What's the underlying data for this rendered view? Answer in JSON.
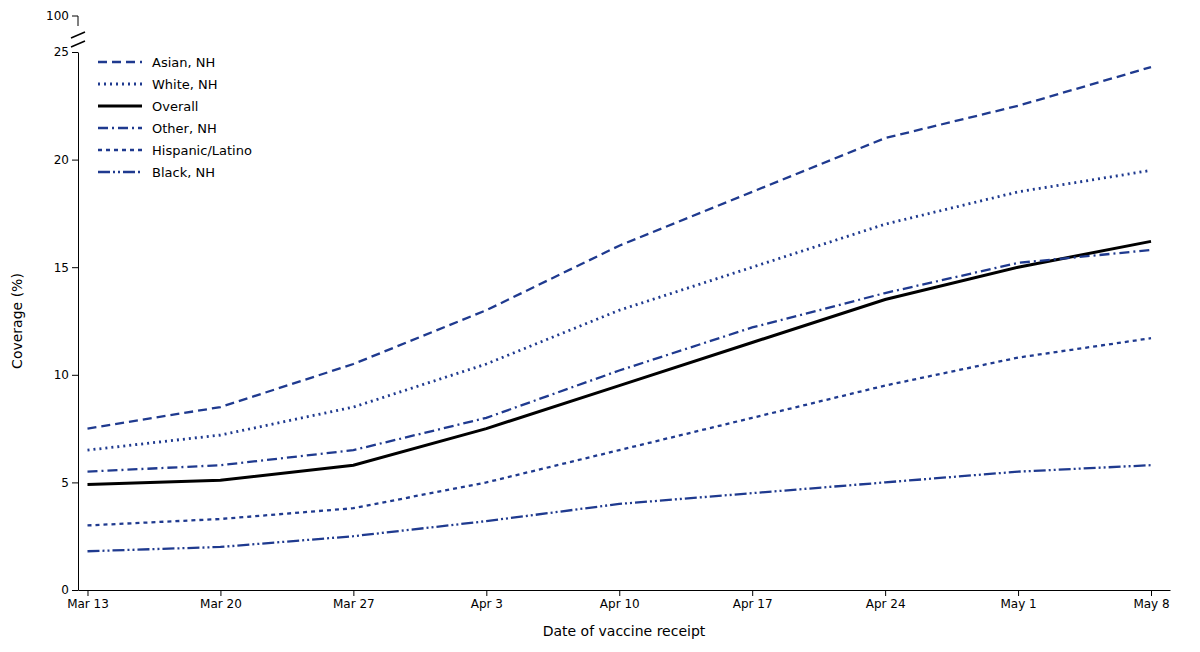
{
  "chart_data": {
    "type": "line",
    "xlabel": "Date of vaccine receipt",
    "ylabel": "Coverage (%)",
    "annotations": [
      "100"
    ],
    "x": [
      0,
      7,
      14,
      21,
      28,
      35,
      42,
      49,
      56
    ],
    "xlim": [
      -0.5,
      57
    ],
    "xticks": [
      {
        "value": 0,
        "label": "Mar 13"
      },
      {
        "value": 7,
        "label": "Mar 20"
      },
      {
        "value": 14,
        "label": "Mar 27"
      },
      {
        "value": 21,
        "label": "Apr 3"
      },
      {
        "value": 28,
        "label": "Apr 10"
      },
      {
        "value": 35,
        "label": "Apr 17"
      },
      {
        "value": 42,
        "label": "Apr 24"
      },
      {
        "value": 49,
        "label": "May 1"
      },
      {
        "value": 56,
        "label": "May 8"
      }
    ],
    "ylim": [
      0,
      25
    ],
    "yticks": [
      0,
      5,
      10,
      15,
      20,
      25
    ],
    "grid": false,
    "legend": "upper left",
    "series": [
      {
        "name": "Asian, NH",
        "color": "#1f3a8f",
        "line_style": "dashed",
        "values": [
          7.5,
          8.5,
          10.5,
          13.0,
          16.0,
          18.5,
          21.0,
          22.5,
          24.3
        ]
      },
      {
        "name": "White, NH",
        "color": "#1f3a8f",
        "line_style": "dotted",
        "values": [
          6.5,
          7.2,
          8.5,
          10.5,
          13.0,
          15.0,
          17.0,
          18.5,
          19.5
        ]
      },
      {
        "name": "Overall",
        "color": "#000000",
        "line_style": "solid",
        "values": [
          4.9,
          5.1,
          5.8,
          7.5,
          9.5,
          11.5,
          13.5,
          15.0,
          16.2
        ]
      },
      {
        "name": "Other, NH",
        "color": "#1f3a8f",
        "line_style": "dashdot",
        "values": [
          5.5,
          5.8,
          6.5,
          8.0,
          10.2,
          12.2,
          13.8,
          15.2,
          15.8
        ]
      },
      {
        "name": "Hispanic/Latino",
        "color": "#1f3a8f",
        "line_style": "shortdash",
        "values": [
          3.0,
          3.3,
          3.8,
          5.0,
          6.5,
          8.0,
          9.5,
          10.8,
          11.7
        ]
      },
      {
        "name": "Black, NH",
        "color": "#1f3a8f",
        "line_style": "dashdotdot",
        "values": [
          1.8,
          2.0,
          2.5,
          3.2,
          4.0,
          4.5,
          5.0,
          5.5,
          5.8
        ]
      }
    ]
  }
}
